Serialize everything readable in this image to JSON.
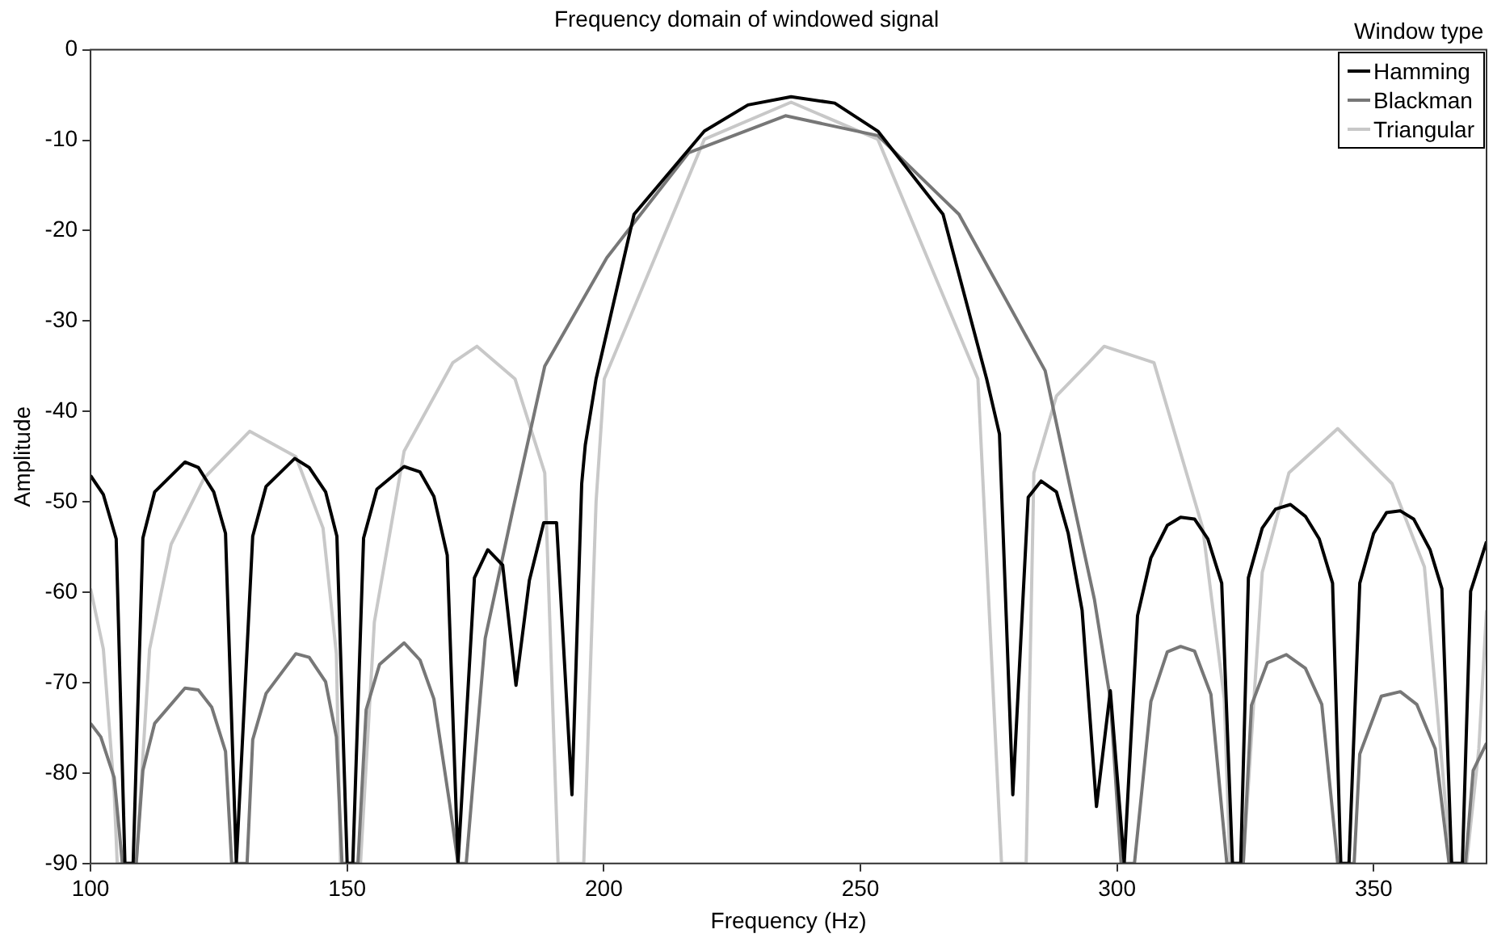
{
  "chart_data": {
    "type": "line",
    "title": "Frequency domain of windowed signal",
    "xlabel": "Frequency (Hz)",
    "ylabel": "Amplitude",
    "legend_title": "Window type",
    "legend": "top right",
    "grid": false,
    "marker": "none",
    "line_style": "solid",
    "xlim": [
      100,
      372
    ],
    "xticks": [
      100,
      150,
      200,
      250,
      300,
      350
    ],
    "ylim": [
      -90,
      0
    ],
    "yticks": [
      -90,
      -80,
      -70,
      -60,
      -50,
      -40,
      -30,
      -20,
      -10,
      0
    ],
    "series": [
      {
        "name": "Hamming",
        "color": "#000000",
        "x": [
          100,
          102.5,
          105,
          106.7,
          108.3,
          110.2,
          112.5,
          118.4,
          121,
          124,
          126.3,
          128.4,
          131.6,
          134.2,
          139.8,
          142.6,
          145.8,
          148,
          150,
          151.1,
          153.2,
          155.8,
          161.1,
          164.2,
          166.9,
          169.5,
          171.6,
          174.8,
          177.4,
          180.3,
          182.9,
          185.5,
          188.3,
          190.8,
          193.8,
          195.7,
          196.4,
          198.5,
          205.9,
          219.6,
          228.1,
          236.5,
          245,
          253.4,
          266.1,
          274.6,
          277.1,
          279.7,
          282.7,
          285.2,
          288.2,
          290.5,
          293.2,
          296,
          298.7,
          301.4,
          304,
          306.6,
          309.8,
          312.4,
          315.1,
          317.7,
          320.4,
          322.5,
          324.1,
          325.6,
          328.3,
          330.9,
          333.8,
          336.7,
          339.4,
          342,
          343.6,
          345.2,
          347.3,
          350,
          352.5,
          355.2,
          357.8,
          361,
          363.3,
          365.2,
          367.3,
          368.9,
          372
        ],
        "values": [
          -47.1,
          -49.2,
          -54.1,
          -90,
          -90,
          -54,
          -48.9,
          -45.6,
          -46.2,
          -48.9,
          -53.5,
          -90,
          -53.8,
          -48.3,
          -45.2,
          -46.2,
          -48.9,
          -53.8,
          -90,
          -90,
          -54,
          -48.6,
          -46.1,
          -46.7,
          -49.4,
          -55.9,
          -90,
          -58.4,
          -55.3,
          -57,
          -70.3,
          -58.7,
          -52.3,
          -52.3,
          -82.4,
          -48,
          -43.7,
          -36.4,
          -18.2,
          -9,
          -6.1,
          -5.2,
          -5.9,
          -9,
          -18.2,
          -36.4,
          -42.5,
          -82.4,
          -49.5,
          -47.7,
          -48.9,
          -53.5,
          -62,
          -83.7,
          -70.9,
          -90,
          -62.6,
          -56.2,
          -52.6,
          -51.7,
          -51.9,
          -54.1,
          -59,
          -90,
          -90,
          -58.4,
          -52.9,
          -50.8,
          -50.3,
          -51.6,
          -54.1,
          -59,
          -90,
          -90,
          -59,
          -53.5,
          -51.2,
          -51,
          -51.9,
          -55.3,
          -59.6,
          -90,
          -90,
          -59.9,
          -54.4
        ]
      },
      {
        "name": "Blackman",
        "color": "#777777",
        "x": [
          100,
          102,
          104.6,
          106.2,
          108.9,
          110.2,
          112.5,
          118.4,
          121,
          123.6,
          126.3,
          127.5,
          130.5,
          131.6,
          134.2,
          140,
          142.6,
          145.8,
          147.9,
          149,
          152.1,
          153.7,
          156.3,
          161.1,
          164.2,
          166.9,
          170,
          171.6,
          173.2,
          176.9,
          182.2,
          188.5,
          200.6,
          216.5,
          235.4,
          253.4,
          269.2,
          286,
          291.4,
          295.6,
          298.7,
          300.8,
          303.4,
          306.6,
          309.8,
          312.4,
          315.1,
          318.3,
          321.4,
          324.6,
          326.2,
          329.3,
          333,
          336.7,
          339.9,
          343,
          346.2,
          347.3,
          351.5,
          355.2,
          358.4,
          362,
          364.7,
          367.9,
          369.4,
          372
        ],
        "values": [
          -74.5,
          -76,
          -80.5,
          -90,
          -90,
          -79.7,
          -74.5,
          -70.6,
          -70.8,
          -72.7,
          -77.6,
          -90,
          -90,
          -76.3,
          -71.2,
          -66.8,
          -67.2,
          -69.9,
          -76,
          -90,
          -90,
          -73,
          -68,
          -65.6,
          -67.5,
          -71.8,
          -83.5,
          -90,
          -90,
          -65.1,
          -51.1,
          -35,
          -23,
          -11.4,
          -7.3,
          -9.5,
          -18.2,
          -35.5,
          -49.8,
          -60.8,
          -71.8,
          -90,
          -90,
          -72.1,
          -66.6,
          -66,
          -66.5,
          -71.3,
          -90,
          -90,
          -72.5,
          -67.8,
          -66.9,
          -68.4,
          -72.4,
          -90,
          -90,
          -77.9,
          -71.5,
          -71,
          -72.4,
          -77.3,
          -90,
          -90,
          -79.7,
          -76.7
        ]
      },
      {
        "name": "Triangular",
        "color": "#c8c8c8",
        "x": [
          100,
          102.5,
          104.6,
          105.2,
          108.9,
          111.5,
          115.7,
          122.1,
          131,
          140,
          145.3,
          147.9,
          148.7,
          152.6,
          155.3,
          161.1,
          170.6,
          175.3,
          182.7,
          188.5,
          191.1,
          191.5,
          196.1,
          198.5,
          200.1,
          219.6,
          236.5,
          253.4,
          272.9,
          277.5,
          282.3,
          283.8,
          288.2,
          294.5,
          297.5,
          307.2,
          316.7,
          320.9,
          322,
          324.6,
          328.3,
          333.5,
          343,
          353.6,
          359.9,
          364.1,
          365.2,
          368.1,
          370.5,
          372
        ],
        "values": [
          -59.6,
          -66.3,
          -82,
          -90,
          -90,
          -66.3,
          -54.7,
          -47.4,
          -42.2,
          -45,
          -52.9,
          -66.8,
          -90,
          -90,
          -63.3,
          -44.4,
          -34.6,
          -32.8,
          -36.4,
          -46.8,
          -90,
          -90,
          -90,
          -50,
          -36.4,
          -9.9,
          -5.8,
          -9.9,
          -36.4,
          -90,
          -90,
          -46.8,
          -38.3,
          -34.6,
          -32.8,
          -34.6,
          -52.9,
          -71.8,
          -90,
          -90,
          -57.8,
          -46.8,
          -41.9,
          -48,
          -57.2,
          -84,
          -90,
          -90,
          -77.3,
          -62
        ]
      }
    ]
  }
}
